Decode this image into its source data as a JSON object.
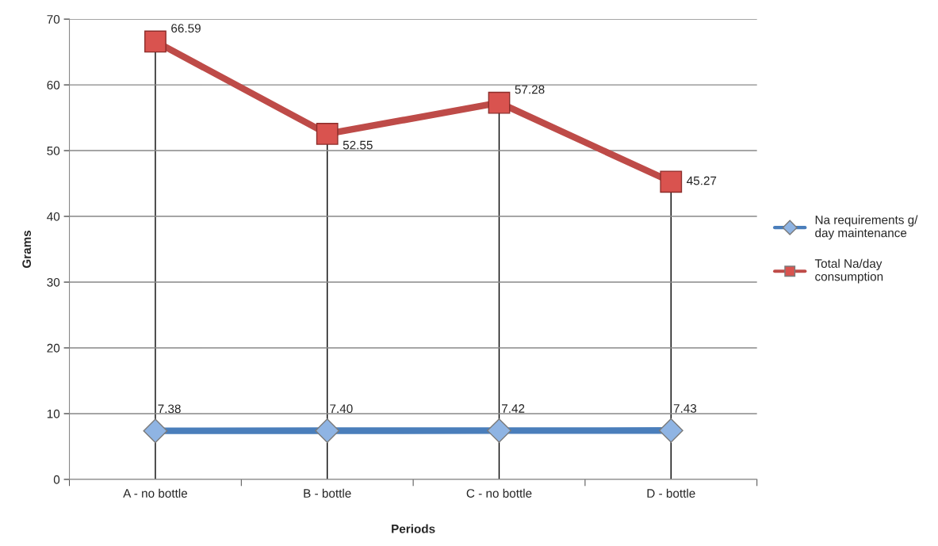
{
  "chart_data": {
    "type": "line",
    "xlabel": "Periods",
    "ylabel": "Grams",
    "categories": [
      "A - no bottle",
      "B - bottle",
      "C - no bottle",
      "D - bottle"
    ],
    "series": [
      {
        "name": "Na requirements g/\nday maintenance",
        "color": "#4a7ebb",
        "marker": "diamond",
        "values": [
          7.38,
          7.4,
          7.42,
          7.43
        ],
        "value_labels": [
          "7.38",
          "7.40",
          "7.42",
          "7.43"
        ]
      },
      {
        "name": "Total Na/day\nconsumption",
        "color": "#be4b48",
        "marker": "square",
        "values": [
          66.59,
          52.55,
          57.28,
          45.27
        ],
        "value_labels": [
          "66.59",
          "52.55",
          "57.28",
          "45.27"
        ]
      }
    ],
    "ylim": [
      0,
      70
    ],
    "yticks": [
      0,
      10,
      20,
      30,
      40,
      50,
      60,
      70
    ],
    "grid": true,
    "legend": "right"
  }
}
